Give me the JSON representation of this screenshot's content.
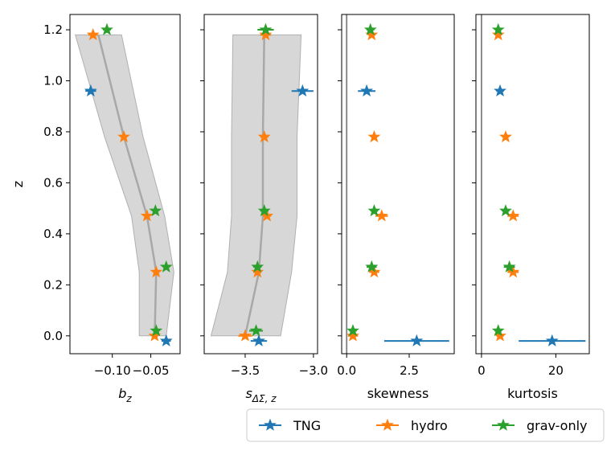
{
  "chart_data": {
    "type": "scatter",
    "colors": {
      "TNG": "#1f77b4",
      "hydro": "#ff7f0e",
      "grav-only": "#2ca02c",
      "band": "#b0b0b0"
    },
    "legend": {
      "placement": "bottom-right",
      "entries": [
        {
          "label": "TNG",
          "color": "#1f77b4",
          "marker": "star"
        },
        {
          "label": "hydro",
          "color": "#ff7f0e",
          "marker": "star"
        },
        {
          "label": "grav-only",
          "color": "#2ca02c",
          "marker": "star"
        }
      ]
    },
    "ylabel": "z",
    "ylim": [
      -0.07,
      1.26
    ],
    "yticks": [
      0.0,
      0.2,
      0.4,
      0.6,
      0.8,
      1.0,
      1.2
    ],
    "ytick_labels": [
      "0.0",
      "0.2",
      "0.4",
      "0.6",
      "0.8",
      "1.0",
      "1.2"
    ],
    "panels": [
      {
        "xlabel": "b_z",
        "xlim": [
          -0.155,
          -0.012
        ],
        "xticks": [
          -0.1,
          -0.05
        ],
        "xtick_labels": [
          "−0.10",
          "−0.05"
        ],
        "band": {
          "z": [
            0.0,
            0.25,
            0.47,
            0.78,
            1.18
          ],
          "center": [
            -0.045,
            -0.043,
            -0.055,
            -0.085,
            -0.118
          ],
          "lower": [
            -0.065,
            -0.065,
            -0.075,
            -0.11,
            -0.148
          ],
          "upper": [
            -0.03,
            -0.02,
            -0.032,
            -0.06,
            -0.088
          ]
        },
        "series": [
          {
            "name": "TNG",
            "points": [
              {
                "z": -0.02,
                "x": -0.03,
                "xerr": 0.006
              },
              {
                "z": 0.96,
                "x": -0.128,
                "xerr": 0.007
              }
            ]
          },
          {
            "name": "hydro",
            "points": [
              {
                "z": 0.0,
                "x": -0.045,
                "xerr": 0.004
              },
              {
                "z": 0.25,
                "x": -0.043,
                "xerr": 0.003
              },
              {
                "z": 0.47,
                "x": -0.055,
                "xerr": 0.003
              },
              {
                "z": 0.78,
                "x": -0.085,
                "xerr": 0.003
              },
              {
                "z": 1.18,
                "x": -0.125,
                "xerr": 0.006
              }
            ]
          },
          {
            "name": "grav-only",
            "points": [
              {
                "z": 0.02,
                "x": -0.043,
                "xerr": 0.004
              },
              {
                "z": 0.27,
                "x": -0.03,
                "xerr": 0.004
              },
              {
                "z": 0.49,
                "x": -0.044,
                "xerr": 0.003
              },
              {
                "z": 1.2,
                "x": -0.107,
                "xerr": 0.005
              }
            ]
          }
        ]
      },
      {
        "xlabel": "s_{ΔΣ, z}",
        "xlim": [
          -3.8,
          -2.97
        ],
        "xticks": [
          -3.5,
          -3.0
        ],
        "xtick_labels": [
          "−3.5",
          "−3.0"
        ],
        "band": {
          "z": [
            0.0,
            0.25,
            0.47,
            0.78,
            1.18
          ],
          "center": [
            -3.5,
            -3.4,
            -3.37,
            -3.37,
            -3.36
          ],
          "lower": [
            -3.75,
            -3.63,
            -3.6,
            -3.6,
            -3.59
          ],
          "upper": [
            -3.24,
            -3.16,
            -3.12,
            -3.12,
            -3.09
          ]
        },
        "series": [
          {
            "name": "TNG",
            "points": [
              {
                "z": -0.02,
                "x": -3.4,
                "xerr": 0.06
              },
              {
                "z": 0.96,
                "x": -3.08,
                "xerr": 0.08
              }
            ]
          },
          {
            "name": "hydro",
            "points": [
              {
                "z": 0.0,
                "x": -3.5,
                "xerr": 0.05
              },
              {
                "z": 0.25,
                "x": -3.41,
                "xerr": 0.03
              },
              {
                "z": 0.47,
                "x": -3.34,
                "xerr": 0.03
              },
              {
                "z": 0.78,
                "x": -3.36,
                "xerr": 0.03
              },
              {
                "z": 1.18,
                "x": -3.35,
                "xerr": 0.04
              }
            ]
          },
          {
            "name": "grav-only",
            "points": [
              {
                "z": 0.02,
                "x": -3.42,
                "xerr": 0.05
              },
              {
                "z": 0.27,
                "x": -3.41,
                "xerr": 0.03
              },
              {
                "z": 0.49,
                "x": -3.36,
                "xerr": 0.03
              },
              {
                "z": 1.2,
                "x": -3.35,
                "xerr": 0.06
              }
            ]
          }
        ]
      },
      {
        "xlabel": "skewness",
        "xlim": [
          -0.2,
          4.3
        ],
        "xticks": [
          0.0,
          2.5
        ],
        "xtick_labels": [
          "0.0",
          "2.5"
        ],
        "refline": 0.0,
        "series": [
          {
            "name": "TNG",
            "points": [
              {
                "z": -0.02,
                "x": 2.8,
                "xerr": 1.3
              },
              {
                "z": 0.96,
                "x": 0.8,
                "xerr": 0.35
              }
            ]
          },
          {
            "name": "hydro",
            "points": [
              {
                "z": 0.0,
                "x": 0.25,
                "xerr": 0.2
              },
              {
                "z": 0.25,
                "x": 1.1,
                "xerr": 0.2
              },
              {
                "z": 0.47,
                "x": 1.4,
                "xerr": 0.25
              },
              {
                "z": 0.78,
                "x": 1.1,
                "xerr": 0.12
              },
              {
                "z": 1.18,
                "x": 1.0,
                "xerr": 0.15
              }
            ]
          },
          {
            "name": "grav-only",
            "points": [
              {
                "z": 0.02,
                "x": 0.25,
                "xerr": 0.15
              },
              {
                "z": 0.27,
                "x": 1.0,
                "xerr": 0.2
              },
              {
                "z": 0.49,
                "x": 1.1,
                "xerr": 0.15
              },
              {
                "z": 1.2,
                "x": 0.95,
                "xerr": 0.15
              }
            ]
          }
        ]
      },
      {
        "xlabel": "kurtosis",
        "xlim": [
          -1.5,
          29
        ],
        "xticks": [
          0,
          20
        ],
        "xtick_labels": [
          "0",
          "20"
        ],
        "refline": 0.0,
        "series": [
          {
            "name": "TNG",
            "points": [
              {
                "z": -0.02,
                "x": 19,
                "xerr": 9
              },
              {
                "z": 0.96,
                "x": 5,
                "xerr": 1
              }
            ]
          },
          {
            "name": "hydro",
            "points": [
              {
                "z": 0.0,
                "x": 5,
                "xerr": 1
              },
              {
                "z": 0.25,
                "x": 8.5,
                "xerr": 1.5
              },
              {
                "z": 0.47,
                "x": 8.5,
                "xerr": 1.5
              },
              {
                "z": 0.78,
                "x": 6.5,
                "xerr": 0.7
              },
              {
                "z": 1.18,
                "x": 4.5,
                "xerr": 0.7
              }
            ]
          },
          {
            "name": "grav-only",
            "points": [
              {
                "z": 0.02,
                "x": 4.5,
                "xerr": 1
              },
              {
                "z": 0.27,
                "x": 7.5,
                "xerr": 1.5
              },
              {
                "z": 0.49,
                "x": 6.5,
                "xerr": 1
              },
              {
                "z": 1.2,
                "x": 4.5,
                "xerr": 0.8
              }
            ]
          }
        ]
      }
    ]
  }
}
